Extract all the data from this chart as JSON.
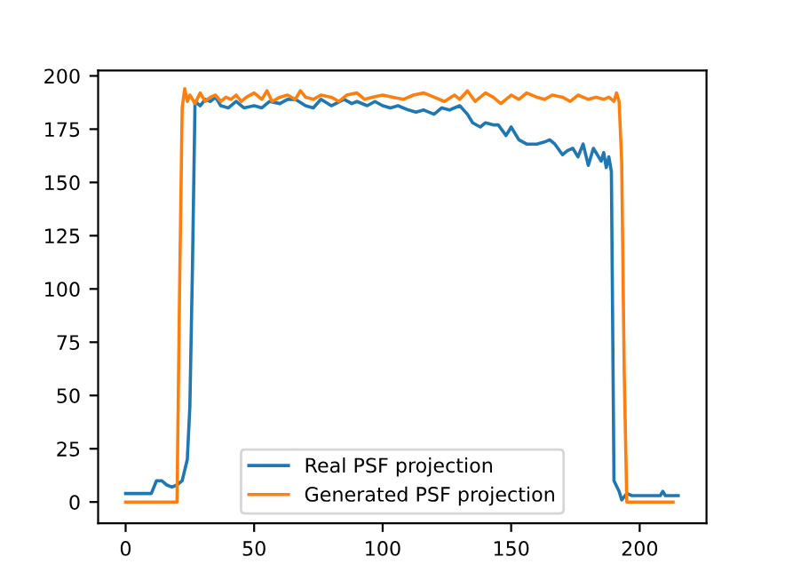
{
  "chart_data": {
    "type": "line",
    "xlim": [
      -10.7,
      226
    ],
    "ylim": [
      -10,
      202.5
    ],
    "xticks": [
      0,
      50,
      100,
      150,
      200
    ],
    "yticks": [
      0,
      25,
      50,
      75,
      100,
      125,
      150,
      175,
      200
    ],
    "grid": false,
    "legend": "bottom",
    "series": [
      {
        "name": "Real PSF projection",
        "color": "#1f77b4",
        "x": [
          0,
          4,
          8,
          10,
          12,
          14,
          16,
          18,
          20,
          22,
          24,
          25,
          26,
          27,
          29,
          31,
          33,
          35,
          37,
          40,
          43,
          46,
          50,
          53,
          56,
          60,
          63,
          66,
          70,
          73,
          76,
          80,
          85,
          88,
          90,
          94,
          97,
          100,
          103,
          106,
          110,
          113,
          116,
          120,
          123,
          126,
          130,
          133,
          135,
          138,
          140,
          143,
          145,
          148,
          150,
          153,
          156,
          160,
          163,
          165,
          167,
          170,
          172,
          174,
          176,
          178,
          180,
          182,
          183,
          185,
          186,
          187,
          188,
          189,
          190,
          192,
          193,
          195,
          197,
          200,
          205,
          208,
          209,
          210,
          215
        ],
        "values": [
          4,
          4,
          4,
          4,
          10,
          10,
          8,
          7,
          8,
          10,
          20,
          45,
          110,
          188,
          186,
          189,
          188,
          190,
          186,
          185,
          188,
          185,
          186,
          185,
          188,
          187,
          189,
          189,
          186,
          185,
          189,
          186,
          189,
          187,
          188,
          186,
          188,
          186,
          185,
          186,
          184,
          183,
          184,
          182,
          185,
          184,
          186,
          182,
          178,
          176,
          178,
          177,
          177,
          172,
          176,
          170,
          168,
          168,
          169,
          170,
          168,
          163,
          165,
          166,
          162,
          168,
          158,
          166,
          164,
          160,
          164,
          157,
          162,
          155,
          10,
          5,
          1,
          4,
          3,
          3,
          3,
          3,
          5,
          3,
          3
        ]
      },
      {
        "name": "Generated PSF projection",
        "color": "#ff7f0e",
        "x": [
          0,
          5,
          10,
          15,
          19,
          20,
          21,
          22,
          23,
          24,
          25,
          27,
          29,
          31,
          33,
          35,
          37,
          39,
          41,
          43,
          45,
          47,
          50,
          53,
          55,
          57,
          60,
          63,
          66,
          68,
          70,
          73,
          76,
          80,
          83,
          86,
          90,
          93,
          96,
          100,
          104,
          108,
          112,
          116,
          120,
          124,
          128,
          130,
          133,
          136,
          140,
          143,
          146,
          150,
          153,
          156,
          160,
          163,
          166,
          170,
          173,
          176,
          180,
          183,
          186,
          188,
          190,
          191,
          192,
          193,
          194,
          195,
          200,
          205,
          210,
          213
        ],
        "values": [
          0,
          0,
          0,
          0,
          0,
          0,
          100,
          185,
          194,
          188,
          191,
          187,
          192,
          188,
          190,
          191,
          188,
          190,
          189,
          191,
          188,
          190,
          192,
          189,
          193,
          188,
          190,
          191,
          189,
          193,
          190,
          189,
          191,
          190,
          188,
          191,
          192,
          189,
          190,
          191,
          190,
          189,
          191,
          192,
          190,
          188,
          191,
          189,
          193,
          188,
          192,
          190,
          187,
          191,
          189,
          192,
          190,
          189,
          191,
          190,
          188,
          191,
          189,
          190,
          189,
          190,
          188,
          192,
          188,
          160,
          60,
          0,
          0,
          0,
          0,
          0
        ]
      }
    ]
  }
}
